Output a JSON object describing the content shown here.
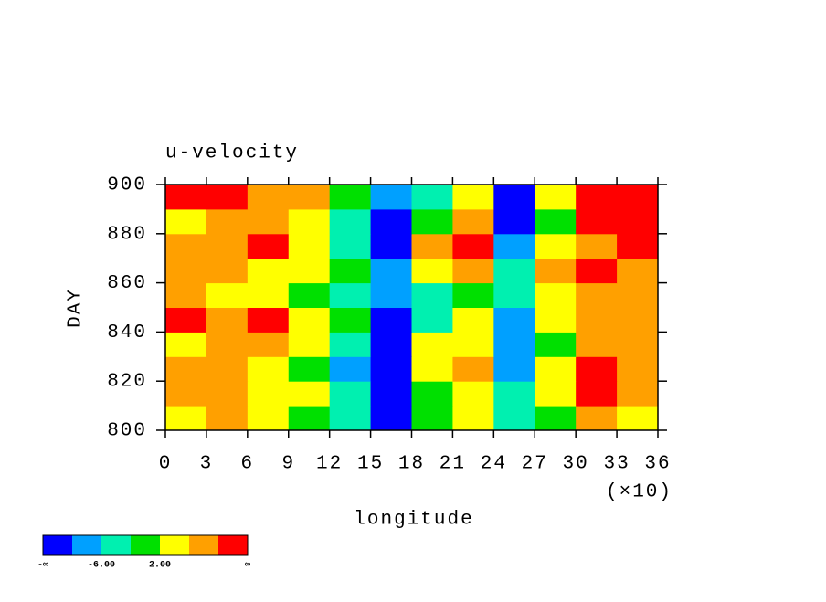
{
  "chart_data": {
    "type": "contour",
    "title": "u-velocity",
    "x_label": "longitude",
    "x_multiplier": "(×10)",
    "y_label": "DAY",
    "x": [
      0,
      3,
      6,
      9,
      12,
      15,
      18,
      21,
      24,
      27,
      30,
      33,
      36
    ],
    "y": [
      800,
      810,
      820,
      830,
      840,
      850,
      860,
      870,
      880,
      890,
      900
    ],
    "z": [
      [
        4,
        6,
        2,
        0,
        -4,
        -12,
        -2,
        2,
        -6,
        0,
        6,
        4
      ],
      [
        6,
        8,
        4,
        2,
        -6,
        -12,
        0,
        4,
        -4,
        2,
        10,
        6
      ],
      [
        8,
        6,
        4,
        0,
        -8,
        -12,
        4,
        6,
        -8,
        4,
        12,
        8
      ],
      [
        4,
        8,
        6,
        2,
        -6,
        -12,
        2,
        4,
        -10,
        0,
        8,
        6
      ],
      [
        10,
        8,
        12,
        4,
        -2,
        -12,
        -4,
        2,
        -8,
        2,
        6,
        8
      ],
      [
        6,
        4,
        2,
        0,
        -4,
        -10,
        -6,
        0,
        -6,
        4,
        8,
        6
      ],
      [
        8,
        6,
        4,
        2,
        -2,
        -10,
        2,
        6,
        -4,
        6,
        10,
        8
      ],
      [
        6,
        8,
        12,
        4,
        -4,
        -12,
        6,
        10,
        -10,
        2,
        8,
        10
      ],
      [
        4,
        6,
        8,
        2,
        -6,
        -12,
        0,
        6,
        -12,
        0,
        10,
        12
      ],
      [
        10,
        12,
        8,
        6,
        -2,
        -10,
        -6,
        4,
        -12,
        4,
        12,
        10
      ]
    ],
    "xlim": [
      0,
      36
    ],
    "ylim": [
      800,
      900
    ],
    "xticks": [
      0,
      3,
      6,
      9,
      12,
      15,
      18,
      21,
      24,
      27,
      30,
      33,
      36
    ],
    "yticks": [
      800,
      820,
      840,
      860,
      880,
      900
    ],
    "levels": [
      {
        "value": null,
        "label": "-∞"
      },
      -10,
      {
        "value": -6,
        "label": "-6.00"
      },
      -2,
      {
        "value": 2,
        "label": "2.00"
      },
      6,
      10,
      {
        "value": null,
        "label": "∞"
      }
    ],
    "colors": [
      "#0000ff",
      "#00a0ff",
      "#00f0b0",
      "#00e000",
      "#ffff00",
      "#ffa000",
      "#ff0000"
    ]
  }
}
